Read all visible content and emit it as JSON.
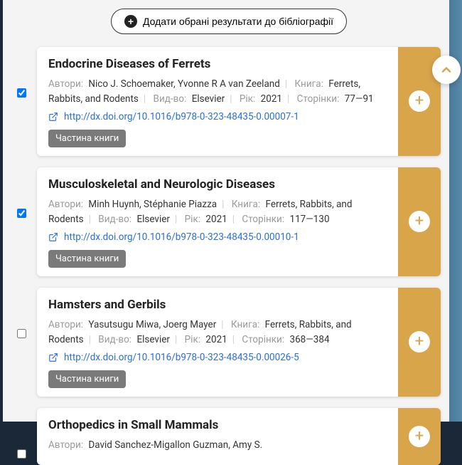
{
  "add_button_label": "Додати обрані результати до бібліографії",
  "labels": {
    "authors": "Автори:",
    "book": "Книга:",
    "publisher": "Вид-во:",
    "year": "Рік:",
    "pages": "Сторінки:"
  },
  "badge_label": "Частина книги",
  "accent_color": "#d9a54a",
  "results": [
    {
      "checked": true,
      "title": "Endocrine Diseases of Ferrets",
      "authors": "Nico J. Schoemaker, Yvonne R A van Zeeland",
      "book": "Ferrets, Rabbits, and Rodents",
      "publisher": "Elsevier",
      "year": "2021",
      "pages": "77—91",
      "doi": "http://dx.doi.org/10.1016/b978-0-323-48435-0.00007-1"
    },
    {
      "checked": true,
      "title": "Musculoskeletal and Neurologic Diseases",
      "authors": "Minh Huynh, Stéphanie Piazza",
      "book": "Ferrets, Rabbits, and Rodents",
      "publisher": "Elsevier",
      "year": "2021",
      "pages": "117—130",
      "doi": "http://dx.doi.org/10.1016/b978-0-323-48435-0.00010-1"
    },
    {
      "checked": false,
      "title": "Hamsters and Gerbils",
      "authors": "Yasutsugu Miwa, Joerg Mayer",
      "book": "Ferrets, Rabbits, and Rodents",
      "publisher": "Elsevier",
      "year": "2021",
      "pages": "368—384",
      "doi": "http://dx.doi.org/10.1016/b978-0-323-48435-0.00026-5"
    },
    {
      "checked": false,
      "title": "Orthopedics in Small Mammals",
      "authors": "David Sanchez-Migallon Guzman, Amy S.",
      "book": "",
      "publisher": "",
      "year": "",
      "pages": "",
      "doi": "",
      "partial": true
    }
  ]
}
